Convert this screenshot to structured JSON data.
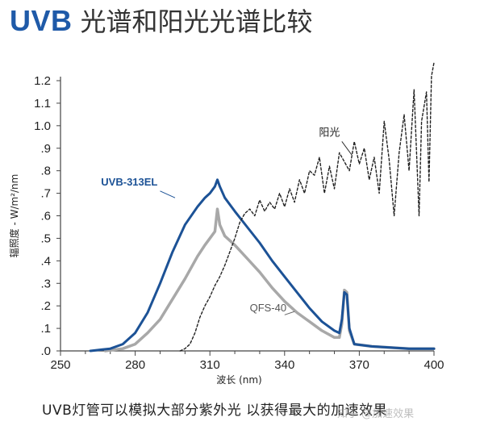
{
  "header": {
    "title_prefix": "UVB",
    "title_rest": "光谱和阳光光谱比较"
  },
  "caption": "UVB灯管可以模拟大部分紫外光 以获得最大的加速效果",
  "watermark": "知乎 @加速效果",
  "colors": {
    "uvb_313el": "#1c5296",
    "qfs_40": "#a8a8a8",
    "sunlight": "#222222",
    "title_accent": "#1f5aa8"
  },
  "chart_data": {
    "type": "line",
    "xlabel": "波长 (nm)",
    "ylabel": "辐照度 - W/m²/nm",
    "xlim": [
      250,
      400
    ],
    "ylim": [
      0,
      1.3
    ],
    "x_ticks": [
      "250",
      "280",
      "310",
      "340",
      "370",
      "400"
    ],
    "y_ticks": [
      ".0",
      ".1",
      ".2",
      ".3",
      ".4",
      ".5",
      ".6",
      ".7",
      ".8",
      ".9",
      "1.0",
      "1.1",
      "1.2"
    ],
    "grid": false,
    "series": [
      {
        "name": "UVB-313EL",
        "style": "solid",
        "points": [
          [
            262,
            0
          ],
          [
            270,
            0.01
          ],
          [
            275,
            0.03
          ],
          [
            280,
            0.08
          ],
          [
            285,
            0.17
          ],
          [
            290,
            0.3
          ],
          [
            295,
            0.44
          ],
          [
            300,
            0.56
          ],
          [
            305,
            0.64
          ],
          [
            308,
            0.68
          ],
          [
            310,
            0.7
          ],
          [
            312,
            0.73
          ],
          [
            313,
            0.76
          ],
          [
            314,
            0.73
          ],
          [
            316,
            0.68
          ],
          [
            320,
            0.62
          ],
          [
            325,
            0.55
          ],
          [
            330,
            0.48
          ],
          [
            335,
            0.4
          ],
          [
            340,
            0.33
          ],
          [
            345,
            0.26
          ],
          [
            350,
            0.19
          ],
          [
            355,
            0.13
          ],
          [
            360,
            0.09
          ],
          [
            362,
            0.08
          ],
          [
            363,
            0.14
          ],
          [
            364,
            0.26
          ],
          [
            365,
            0.25
          ],
          [
            366,
            0.1
          ],
          [
            368,
            0.03
          ],
          [
            375,
            0.02
          ],
          [
            390,
            0.01
          ],
          [
            400,
            0.01
          ]
        ]
      },
      {
        "name": "QFS-40",
        "style": "solid",
        "points": [
          [
            268,
            0
          ],
          [
            275,
            0.01
          ],
          [
            280,
            0.03
          ],
          [
            285,
            0.08
          ],
          [
            290,
            0.14
          ],
          [
            295,
            0.23
          ],
          [
            300,
            0.32
          ],
          [
            305,
            0.42
          ],
          [
            308,
            0.47
          ],
          [
            310,
            0.5
          ],
          [
            312,
            0.53
          ],
          [
            313,
            0.63
          ],
          [
            314,
            0.56
          ],
          [
            316,
            0.51
          ],
          [
            320,
            0.47
          ],
          [
            325,
            0.41
          ],
          [
            330,
            0.35
          ],
          [
            335,
            0.28
          ],
          [
            340,
            0.22
          ],
          [
            345,
            0.17
          ],
          [
            350,
            0.13
          ],
          [
            355,
            0.09
          ],
          [
            360,
            0.06
          ],
          [
            362,
            0.06
          ],
          [
            363,
            0.12
          ],
          [
            364,
            0.27
          ],
          [
            365,
            0.26
          ],
          [
            366,
            0.09
          ],
          [
            368,
            0.03
          ],
          [
            375,
            0.02
          ],
          [
            390,
            0.01
          ],
          [
            400,
            0.01
          ]
        ]
      },
      {
        "name": "阳光",
        "style": "dashed",
        "points": [
          [
            298,
            0
          ],
          [
            300,
            0.01
          ],
          [
            302,
            0.03
          ],
          [
            304,
            0.08
          ],
          [
            306,
            0.15
          ],
          [
            308,
            0.2
          ],
          [
            310,
            0.24
          ],
          [
            312,
            0.29
          ],
          [
            314,
            0.33
          ],
          [
            316,
            0.38
          ],
          [
            318,
            0.44
          ],
          [
            320,
            0.5
          ],
          [
            322,
            0.57
          ],
          [
            324,
            0.61
          ],
          [
            326,
            0.63
          ],
          [
            328,
            0.6
          ],
          [
            330,
            0.67
          ],
          [
            332,
            0.62
          ],
          [
            334,
            0.66
          ],
          [
            336,
            0.63
          ],
          [
            338,
            0.7
          ],
          [
            340,
            0.64
          ],
          [
            342,
            0.72
          ],
          [
            344,
            0.66
          ],
          [
            346,
            0.76
          ],
          [
            348,
            0.7
          ],
          [
            350,
            0.8
          ],
          [
            352,
            0.78
          ],
          [
            354,
            0.86
          ],
          [
            356,
            0.7
          ],
          [
            358,
            0.82
          ],
          [
            360,
            0.72
          ],
          [
            362,
            0.88
          ],
          [
            364,
            0.84
          ],
          [
            366,
            0.8
          ],
          [
            368,
            0.93
          ],
          [
            370,
            0.83
          ],
          [
            372,
            0.9
          ],
          [
            374,
            0.76
          ],
          [
            376,
            0.86
          ],
          [
            378,
            0.7
          ],
          [
            380,
            1.02
          ],
          [
            382,
            0.85
          ],
          [
            384,
            0.6
          ],
          [
            386,
            0.88
          ],
          [
            388,
            1.05
          ],
          [
            390,
            0.8
          ],
          [
            392,
            1.16
          ],
          [
            394,
            0.6
          ],
          [
            395,
            1.02
          ],
          [
            397,
            1.15
          ],
          [
            398,
            0.75
          ],
          [
            399,
            1.22
          ],
          [
            400,
            1.28
          ]
        ]
      }
    ],
    "annotations": [
      {
        "text": "UVB-313EL",
        "series": "UVB-313EL"
      },
      {
        "text": "QFS-40",
        "series": "QFS-40"
      },
      {
        "text": "阳光",
        "series": "阳光"
      }
    ]
  }
}
